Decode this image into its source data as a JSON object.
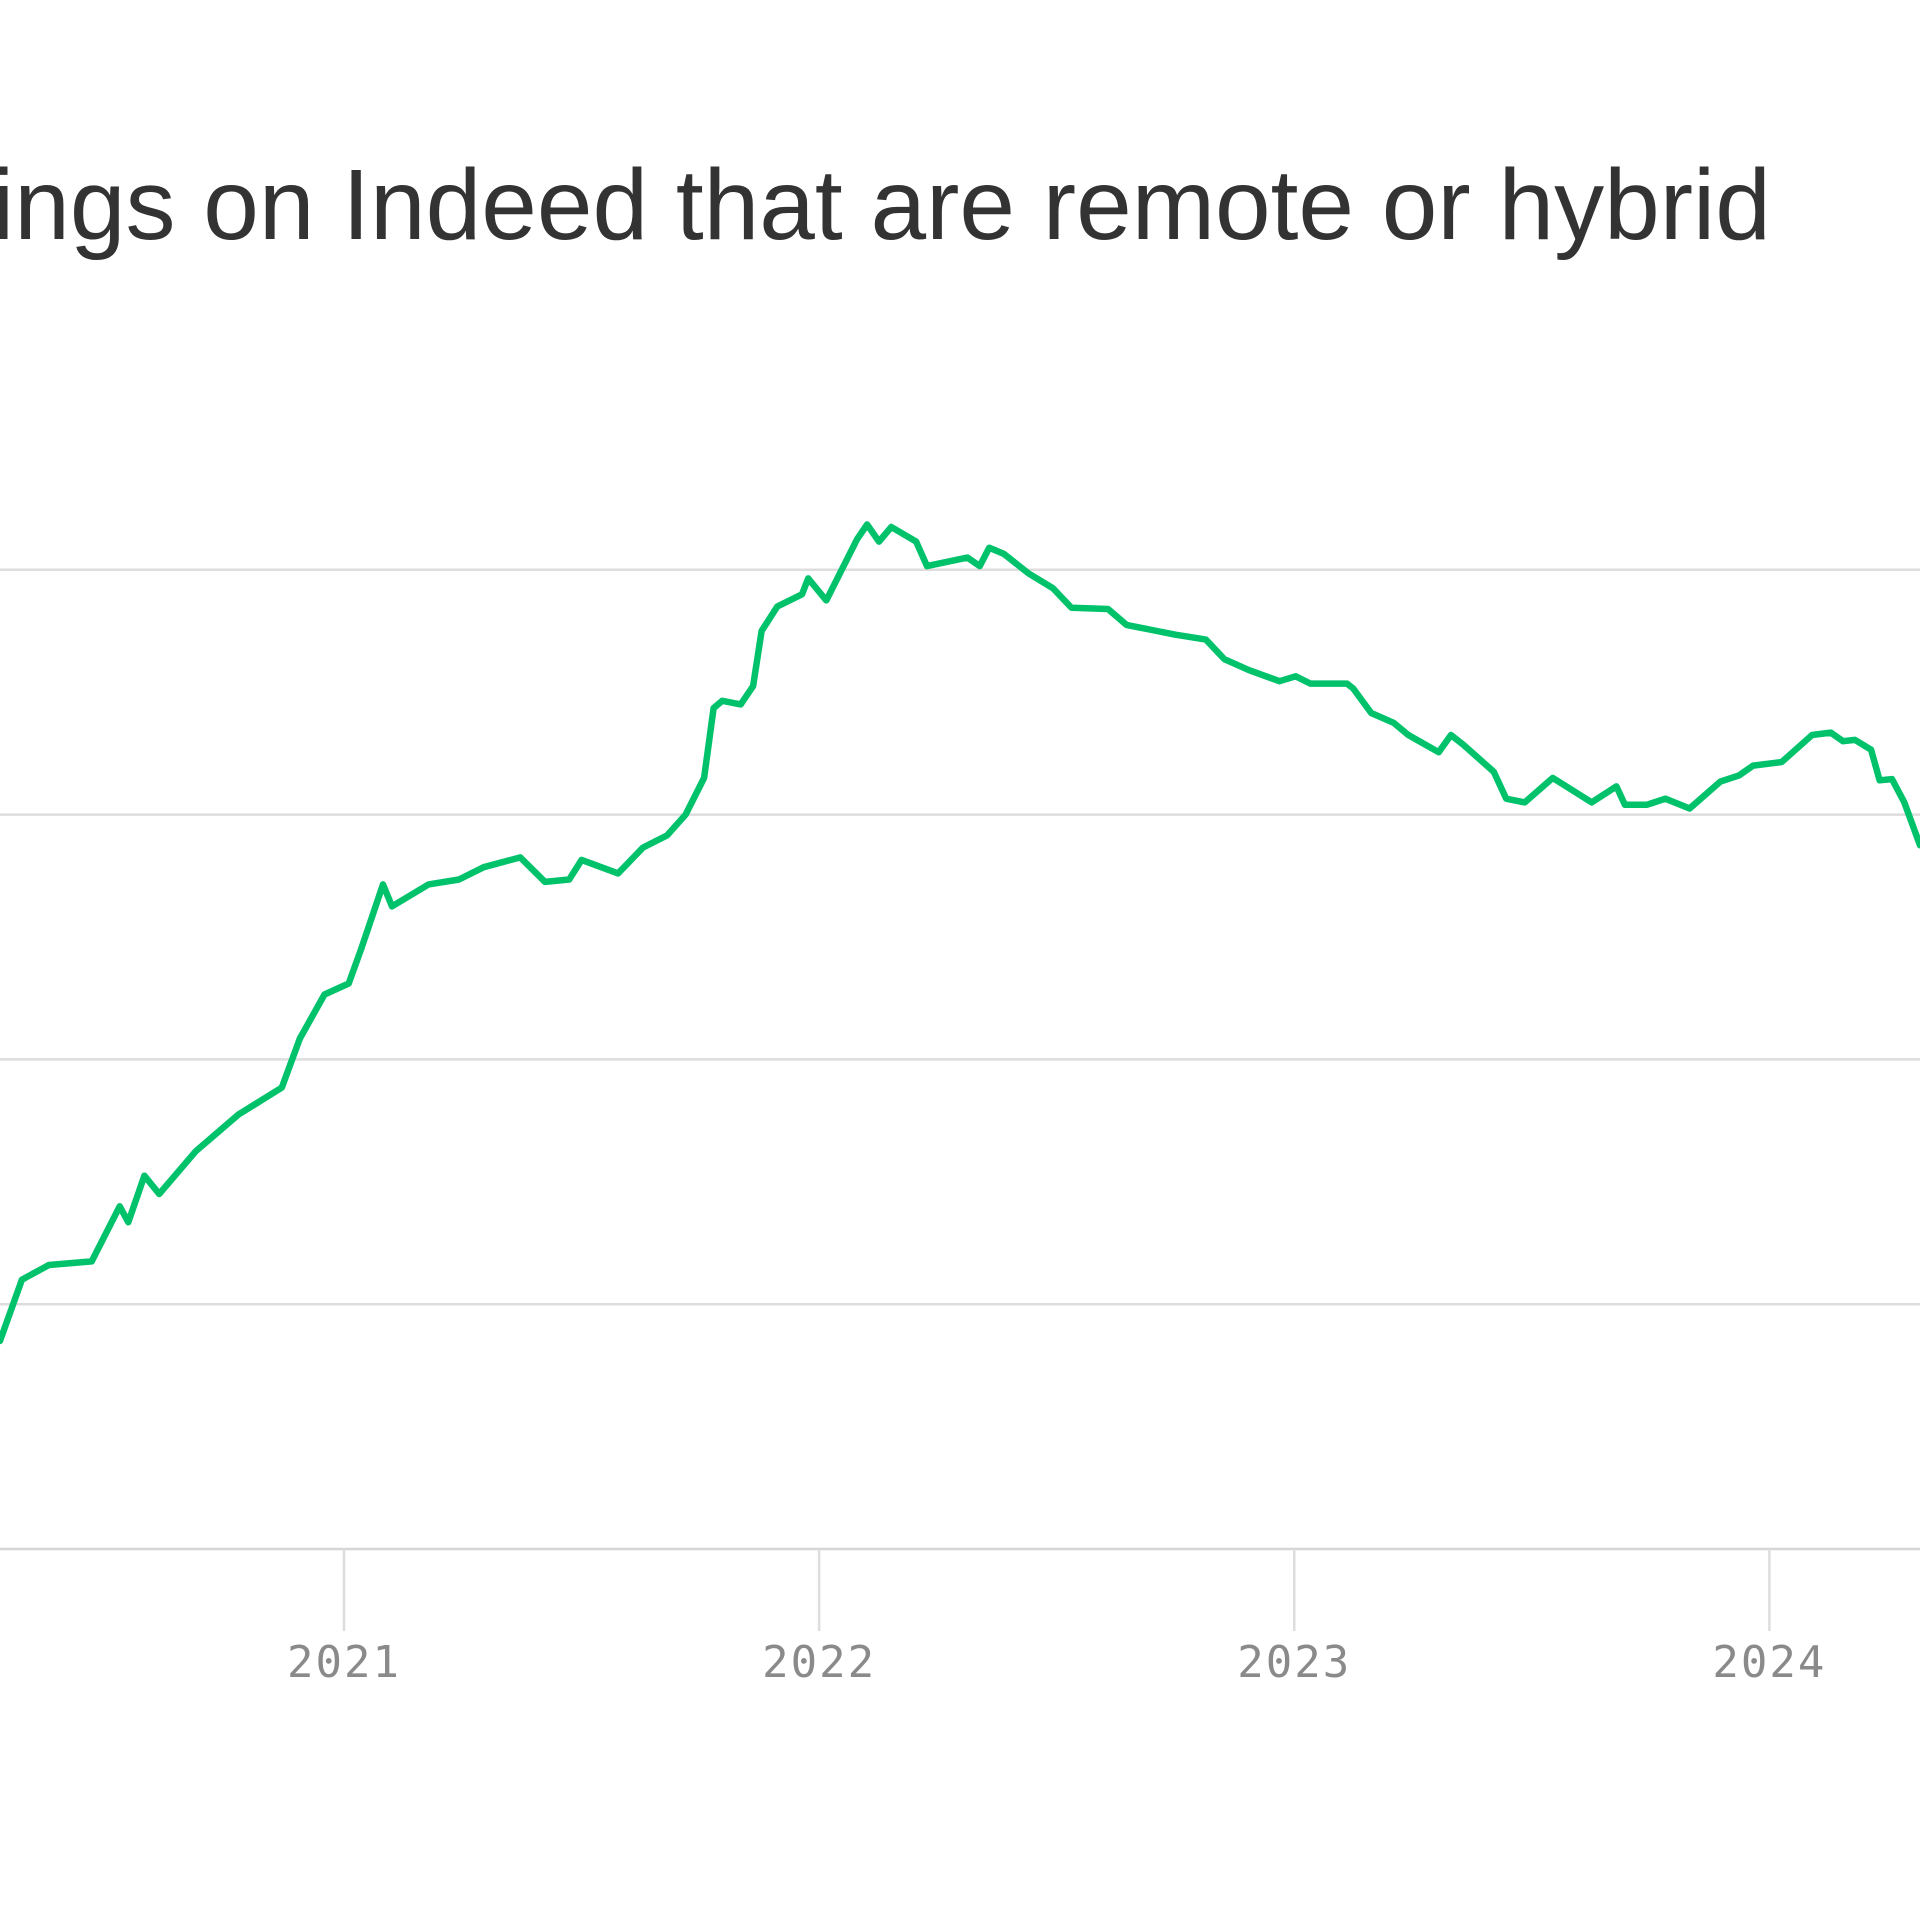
{
  "chart_data": {
    "type": "line",
    "title": "ings on Indeed that are remote or hybrid",
    "xlabel": "",
    "ylabel": "",
    "x_ticks": [
      2021,
      2022,
      2023,
      2024
    ],
    "x_tick_labels": [
      "2021",
      "2022",
      "2023",
      "2024"
    ],
    "xlim": [
      2020.276,
      2024.317
    ],
    "ylim": [
      0,
      4.6
    ],
    "y_gridlines": [
      0,
      1,
      2,
      3,
      4
    ],
    "y_tick_labels": [],
    "grid": true,
    "colors": {
      "line": "#00c26b",
      "grid": "#dddddd",
      "title": "#333333",
      "tick_label": "#8a8a8a"
    },
    "series": [
      {
        "x": [
          2020.276,
          2020.322,
          2020.379,
          2020.469,
          2020.528,
          2020.546,
          2020.58,
          2020.611,
          2020.688,
          2020.778,
          2020.869,
          2020.907,
          2020.959,
          2021.01,
          2021.036,
          2021.082,
          2021.101,
          2021.178,
          2021.242,
          2021.294,
          2021.371,
          2021.423,
          2021.474,
          2021.5,
          2021.577,
          2021.629,
          2021.68,
          2021.719,
          2021.758,
          2021.778,
          2021.796,
          2021.835,
          2021.861,
          2021.879,
          2021.912,
          2021.964,
          2021.977,
          2022.015,
          2022.08,
          2022.101,
          2022.126,
          2022.152,
          2022.204,
          2022.227,
          2022.312,
          2022.338,
          2022.358,
          2022.389,
          2022.441,
          2022.492,
          2022.531,
          2022.608,
          2022.647,
          2022.711,
          2022.75,
          2022.814,
          2022.853,
          2022.905,
          2022.969,
          2023.003,
          2023.034,
          2023.111,
          2023.124,
          2023.162,
          2023.209,
          2023.24,
          2023.304,
          2023.33,
          2023.356,
          2023.42,
          2023.446,
          2023.485,
          2023.544,
          2023.626,
          2023.678,
          2023.696,
          2023.742,
          2023.781,
          2023.832,
          2023.897,
          2023.936,
          2023.966,
          2024.026,
          2024.09,
          2024.129,
          2024.155,
          2024.18,
          2024.214,
          2024.232,
          2024.258,
          2024.284,
          2024.317
        ],
        "y": [
          0.85,
          1.1,
          1.16,
          1.175,
          1.4,
          1.335,
          1.525,
          1.45,
          1.625,
          1.775,
          1.885,
          2.085,
          2.265,
          2.31,
          2.45,
          2.715,
          2.625,
          2.715,
          2.735,
          2.785,
          2.825,
          2.725,
          2.735,
          2.815,
          2.76,
          2.865,
          2.915,
          3.0,
          3.15,
          3.435,
          3.465,
          3.45,
          3.525,
          3.75,
          3.85,
          3.9,
          3.965,
          3.875,
          4.125,
          4.185,
          4.115,
          4.175,
          4.115,
          4.015,
          4.05,
          4.015,
          4.09,
          4.065,
          3.985,
          3.925,
          3.845,
          3.84,
          3.775,
          3.75,
          3.735,
          3.715,
          3.635,
          3.59,
          3.545,
          3.565,
          3.535,
          3.535,
          3.515,
          3.415,
          3.375,
          3.325,
          3.255,
          3.325,
          3.285,
          3.175,
          3.065,
          3.05,
          3.15,
          3.05,
          3.115,
          3.04,
          3.04,
          3.065,
          3.025,
          3.135,
          3.16,
          3.2,
          3.215,
          3.325,
          3.335,
          3.3,
          3.305,
          3.265,
          3.14,
          3.145,
          3.05,
          2.875
        ]
      }
    ]
  }
}
